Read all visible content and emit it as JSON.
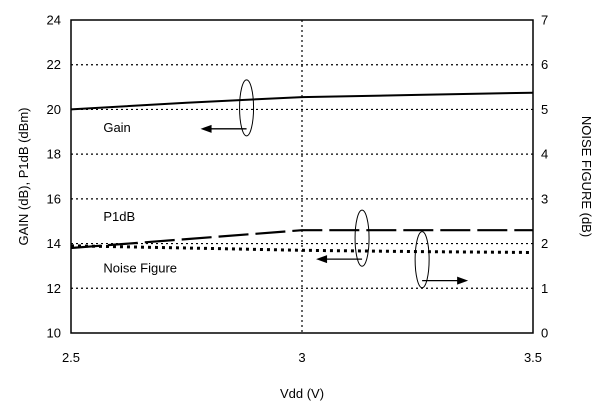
{
  "chart_data": {
    "type": "line",
    "title": "",
    "xlabel": "Vdd (V)",
    "ylabel": "GAIN (dB), P1dB (dBm)",
    "y2label": "NOISE FIGURE (dB)",
    "xlim": [
      2.5,
      3.5
    ],
    "ylim": [
      10,
      24
    ],
    "y2lim": [
      0,
      7
    ],
    "x_ticks": [
      "2.5",
      "3",
      "3.5"
    ],
    "y_ticks": [
      "10",
      "12",
      "14",
      "16",
      "18",
      "20",
      "22",
      "24"
    ],
    "y2_ticks": [
      "0",
      "1",
      "2",
      "3",
      "4",
      "5",
      "6",
      "7"
    ],
    "grid": true,
    "series": [
      {
        "name": "Gain",
        "axis": "left",
        "style": "solid",
        "x": [
          2.5,
          2.75,
          3.0,
          3.25,
          3.5
        ],
        "y": [
          20.0,
          20.3,
          20.55,
          20.65,
          20.75
        ]
      },
      {
        "name": "P1dB",
        "axis": "left",
        "style": "dashed",
        "x": [
          2.5,
          2.75,
          3.0,
          3.25,
          3.5
        ],
        "y": [
          13.8,
          14.2,
          14.6,
          14.6,
          14.6
        ]
      },
      {
        "name": "Noise Figure",
        "axis": "right",
        "style": "dotted",
        "x": [
          2.5,
          2.75,
          3.0,
          3.25,
          3.5
        ],
        "y": [
          1.95,
          1.9,
          1.85,
          1.82,
          1.8
        ]
      }
    ],
    "annotations": [
      {
        "text": "Gain",
        "x": 2.57,
        "y": 19.0
      },
      {
        "text": "P1dB",
        "x": 2.57,
        "y": 15.0
      },
      {
        "text": "Noise Figure",
        "x": 2.57,
        "y": 12.7
      }
    ]
  }
}
